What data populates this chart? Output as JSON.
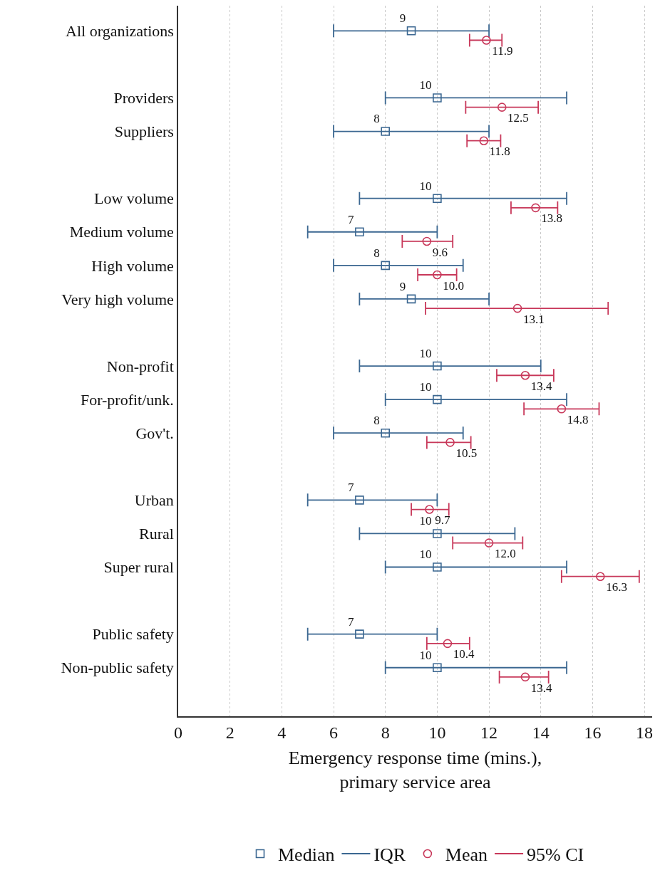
{
  "chart_data": {
    "type": "scatter",
    "orientation": "horizontal",
    "categories": [
      "All organizations",
      null,
      "Providers",
      "Suppliers",
      null,
      "Low volume",
      "Medium volume",
      "High volume",
      "Very high volume",
      null,
      "Non-profit",
      "For-profit/unk.",
      "Gov't.",
      null,
      "Urban",
      "Rural",
      "Super rural",
      null,
      "Public safety",
      "Non-public safety"
    ],
    "series": [
      {
        "name": "Median",
        "color": "#3b6791",
        "marker": "square",
        "values": [
          9,
          null,
          10,
          8,
          null,
          10,
          7,
          8,
          9,
          null,
          10,
          10,
          8,
          null,
          7,
          10,
          10,
          null,
          7,
          10
        ],
        "value_labels": [
          "9",
          null,
          "10",
          "8",
          null,
          "10",
          "7",
          "8",
          "9",
          null,
          "10",
          "10",
          "8",
          null,
          "7",
          "10",
          "10",
          null,
          "7",
          "10"
        ],
        "errors": [
          [
            6,
            12
          ],
          null,
          [
            8,
            15
          ],
          [
            6,
            12
          ],
          null,
          [
            7,
            15
          ],
          [
            5,
            10
          ],
          [
            6,
            11
          ],
          [
            7,
            12
          ],
          null,
          [
            7,
            14
          ],
          [
            8,
            15
          ],
          [
            6,
            11
          ],
          null,
          [
            5,
            10
          ],
          [
            7,
            13
          ],
          [
            8,
            15
          ],
          null,
          [
            5,
            10
          ],
          [
            8,
            15
          ]
        ]
      },
      {
        "name": "Mean",
        "color": "#c8385a",
        "marker": "circle",
        "values": [
          11.9,
          null,
          12.5,
          11.8,
          null,
          13.8,
          9.6,
          10.0,
          13.1,
          null,
          13.4,
          14.8,
          10.5,
          null,
          9.7,
          12.0,
          16.3,
          null,
          10.4,
          13.4
        ],
        "value_labels": [
          "11.9",
          null,
          "12.5",
          "11.8",
          null,
          "13.8",
          "9.6",
          "10.0",
          "13.1",
          null,
          "13.4",
          "14.8",
          "10.5",
          null,
          "9.7",
          "12.0",
          "16.3",
          null,
          "10.4",
          "13.4"
        ],
        "errors": [
          [
            11.25,
            12.5
          ],
          null,
          [
            11.1,
            13.9
          ],
          [
            11.15,
            12.45
          ],
          null,
          [
            12.85,
            14.65
          ],
          [
            8.65,
            10.6
          ],
          [
            9.25,
            10.75
          ],
          [
            9.55,
            16.6
          ],
          null,
          [
            12.3,
            14.5
          ],
          [
            13.35,
            16.25
          ],
          [
            9.6,
            11.3
          ],
          null,
          [
            9.0,
            10.45
          ],
          [
            10.6,
            13.3
          ],
          [
            14.8,
            17.8
          ],
          null,
          [
            9.6,
            11.25
          ],
          [
            12.4,
            14.3
          ]
        ]
      }
    ],
    "annotations": [
      "IQR",
      "95% CI"
    ],
    "xlabel": "Emergency response time (mins.),\nprimary service area",
    "xlim": [
      0,
      18.3
    ],
    "xticks": [
      0,
      2,
      4,
      6,
      8,
      10,
      12,
      14,
      16,
      18
    ],
    "grid": "x",
    "legend": "bottom"
  }
}
